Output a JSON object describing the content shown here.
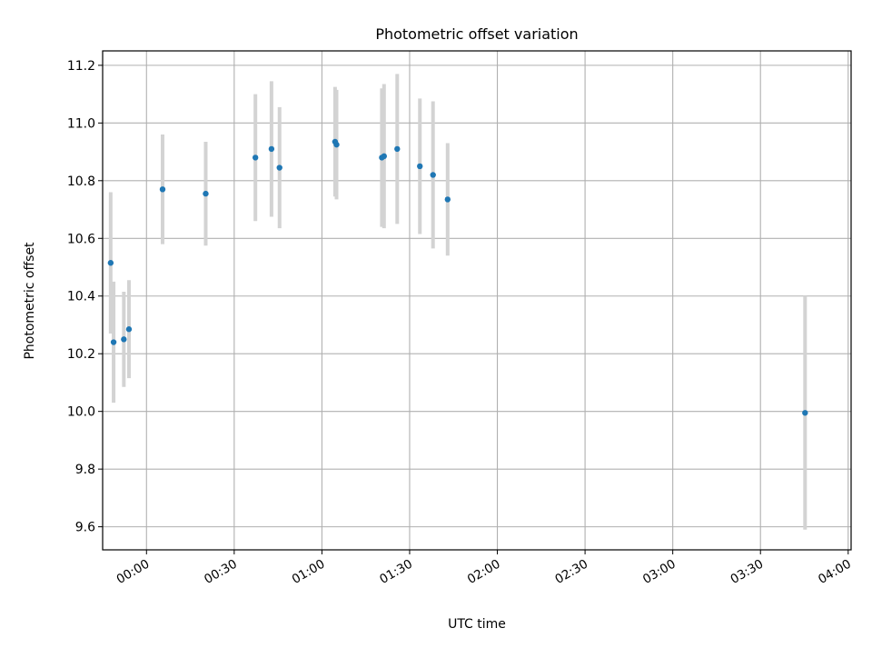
{
  "chart_data": {
    "type": "scatter",
    "title": "Photometric offset variation",
    "xlabel": "UTC time",
    "ylabel": "Photometric offset",
    "x_ticks": [
      "00:00",
      "00:30",
      "01:00",
      "01:30",
      "02:00",
      "02:30",
      "03:00",
      "03:30",
      "04:00"
    ],
    "x_tick_minutes": [
      0,
      30,
      60,
      90,
      120,
      150,
      180,
      210,
      240
    ],
    "xlim_minutes": [
      -15,
      241
    ],
    "y_ticks": [
      "9.6",
      "9.8",
      "10.0",
      "10.2",
      "10.4",
      "10.6",
      "10.8",
      "11.0",
      "11.2"
    ],
    "ylim": [
      9.52,
      11.25
    ],
    "grid": true,
    "point_color": "#1f77b4",
    "errorbar_color": "#d3d3d3",
    "points": [
      {
        "t": "23:47:45",
        "y": 10.515,
        "err": 0.245
      },
      {
        "t": "23:48:45",
        "y": 10.24,
        "err": 0.21
      },
      {
        "t": "23:52:15",
        "y": 10.25,
        "err": 0.165
      },
      {
        "t": "23:54:00",
        "y": 10.285,
        "err": 0.17
      },
      {
        "t": "00:05:30",
        "y": 10.77,
        "err": 0.19
      },
      {
        "t": "00:20:15",
        "y": 10.755,
        "err": 0.18
      },
      {
        "t": "00:37:15",
        "y": 10.88,
        "err": 0.22
      },
      {
        "t": "00:42:45",
        "y": 10.91,
        "err": 0.235
      },
      {
        "t": "00:45:30",
        "y": 10.845,
        "err": 0.21
      },
      {
        "t": "01:04:30",
        "y": 10.935,
        "err": 0.19
      },
      {
        "t": "01:05:00",
        "y": 10.925,
        "err": 0.19
      },
      {
        "t": "01:20:30",
        "y": 10.88,
        "err": 0.24
      },
      {
        "t": "01:21:15",
        "y": 10.885,
        "err": 0.25
      },
      {
        "t": "01:25:45",
        "y": 10.91,
        "err": 0.26
      },
      {
        "t": "01:33:30",
        "y": 10.85,
        "err": 0.235
      },
      {
        "t": "01:38:00",
        "y": 10.82,
        "err": 0.255
      },
      {
        "t": "01:43:00",
        "y": 10.735,
        "err": 0.195
      },
      {
        "t": "03:45:15",
        "y": 9.995,
        "err": 0.405
      }
    ]
  }
}
